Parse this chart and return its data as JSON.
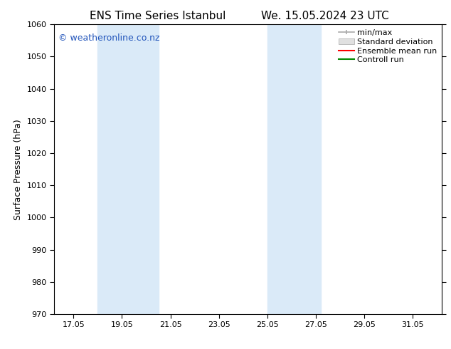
{
  "title_left": "ENS Time Series Istanbul",
  "title_right": "We. 15.05.2024 23 UTC",
  "ylabel": "Surface Pressure (hPa)",
  "ylim": [
    970,
    1060
  ],
  "yticks": [
    970,
    980,
    990,
    1000,
    1010,
    1020,
    1030,
    1040,
    1050,
    1060
  ],
  "xlim_days": [
    16.2,
    32.2
  ],
  "xtick_labels": [
    "17.05",
    "19.05",
    "21.05",
    "23.05",
    "25.05",
    "27.05",
    "29.05",
    "31.05"
  ],
  "xtick_positions": [
    17,
    19,
    21,
    23,
    25,
    27,
    29,
    31
  ],
  "shaded_bands": [
    {
      "x_start": 18.0,
      "x_end": 20.5
    },
    {
      "x_start": 25.0,
      "x_end": 27.2
    }
  ],
  "shaded_color": "#daeaf8",
  "watermark_text": "© weatheronline.co.nz",
  "watermark_color": "#2255bb",
  "watermark_fontsize": 9,
  "legend_labels": [
    "min/max",
    "Standard deviation",
    "Ensemble mean run",
    "Controll run"
  ],
  "minmax_color": "#aaaaaa",
  "stddev_color": "#cccccc",
  "ensemble_color": "#ff0000",
  "control_color": "#008800",
  "bg_color": "#ffffff",
  "title_fontsize": 11,
  "label_fontsize": 9,
  "tick_fontsize": 8,
  "legend_fontsize": 8
}
